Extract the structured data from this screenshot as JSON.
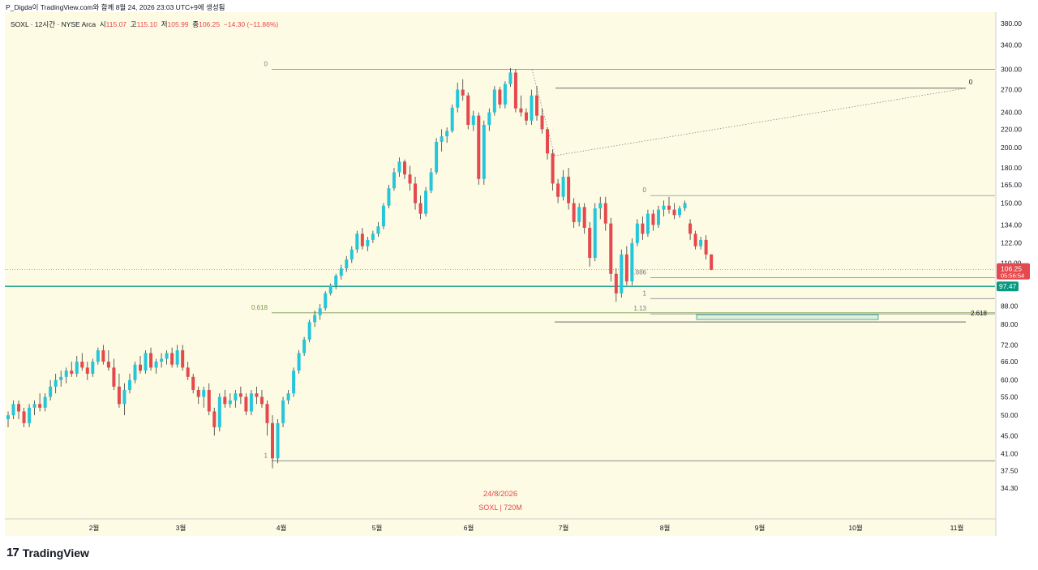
{
  "header": {
    "attribution": "P_Digda이 TradingView.com와 함께 8월 24, 2026 23:03 UTC+9에 생성됨"
  },
  "legend": {
    "symbol": "SOXL · 12시간 · NYSE Arca",
    "open_label": "시",
    "open": "115.07",
    "high_label": "고",
    "high": "115.10",
    "low_label": "저",
    "low": "105.99",
    "close_label": "종",
    "close": "106.25",
    "change": "−14.30 (−11.86%)"
  },
  "brand": {
    "logo_mark": "17",
    "name": "TradingView"
  },
  "watermark": {
    "date": "24/8/2026",
    "symbol": "SOXL | 720M"
  },
  "colors": {
    "up": "#26c6da",
    "down": "#e5484d",
    "background": "#fdfbe3",
    "support_line": "#089981",
    "price_badge": "#e5484d"
  },
  "chart_data": {
    "type": "candlestick",
    "y_scale": "log",
    "ylim": [
      31,
      390
    ],
    "price_ticks": [
      "380.00",
      "340.00",
      "300.00",
      "270.00",
      "240.00",
      "220.00",
      "200.00",
      "180.00",
      "165.00",
      "150.00",
      "134.00",
      "122.00",
      "110.00",
      "97.47",
      "88.00",
      "80.00",
      "72.00",
      "66.00",
      "60.00",
      "55.00",
      "50.00",
      "45.00",
      "41.00",
      "37.50",
      "34.30"
    ],
    "month_labels": [
      "2월",
      "3월",
      "4월",
      "5월",
      "6월",
      "7월",
      "8월",
      "9월",
      "10월",
      "11월"
    ],
    "last_price": "106.25",
    "countdown": "05:56:54",
    "support_price": "97.47",
    "fib_large": {
      "levels": [
        {
          "ratio": "0",
          "price": 300
        },
        {
          "ratio": "0.618",
          "price": 85
        },
        {
          "ratio": "1",
          "price": 39.5
        }
      ]
    },
    "fib_small": {
      "levels": [
        {
          "ratio": "0",
          "price": 156
        },
        {
          "ratio": "0.886",
          "price": 102
        },
        {
          "ratio": "1",
          "price": 91.5
        },
        {
          "ratio": "1.13",
          "price": 84.5
        }
      ]
    },
    "extension": {
      "ratio": "2.618",
      "price": 83.5,
      "zero_label": "0"
    },
    "projection_start_price": 200,
    "projection_end_price": 272,
    "candles": [
      [
        49,
        51,
        47,
        50
      ],
      [
        50,
        54,
        49,
        53
      ],
      [
        53,
        54,
        49,
        51
      ],
      [
        51,
        52,
        47,
        48
      ],
      [
        48,
        53,
        47,
        52
      ],
      [
        52,
        54,
        50,
        53
      ],
      [
        53,
        56,
        51,
        52
      ],
      [
        52,
        56,
        51,
        55
      ],
      [
        55,
        60,
        54,
        58
      ],
      [
        58,
        62,
        56,
        60
      ],
      [
        60,
        63,
        58,
        61
      ],
      [
        61,
        64,
        59,
        63
      ],
      [
        63,
        66,
        61,
        62
      ],
      [
        62,
        68,
        61,
        66
      ],
      [
        66,
        69,
        63,
        64
      ],
      [
        64,
        66,
        60,
        62
      ],
      [
        62,
        67,
        61,
        66
      ],
      [
        66,
        71,
        65,
        70
      ],
      [
        70,
        72,
        65,
        66
      ],
      [
        66,
        70,
        63,
        64
      ],
      [
        64,
        67,
        57,
        58
      ],
      [
        58,
        62,
        52,
        53
      ],
      [
        53,
        59,
        50,
        57
      ],
      [
        57,
        62,
        56,
        60
      ],
      [
        60,
        66,
        59,
        65
      ],
      [
        65,
        68,
        62,
        63
      ],
      [
        63,
        70,
        62,
        69
      ],
      [
        69,
        71,
        63,
        64
      ],
      [
        64,
        67,
        62,
        66
      ],
      [
        66,
        69,
        64,
        67
      ],
      [
        67,
        70,
        65,
        69
      ],
      [
        69,
        71,
        64,
        65
      ],
      [
        65,
        72,
        64,
        70
      ],
      [
        70,
        72,
        63,
        64
      ],
      [
        64,
        66,
        60,
        61
      ],
      [
        61,
        62,
        56,
        57
      ],
      [
        57,
        58,
        53,
        55
      ],
      [
        55,
        58,
        52,
        57
      ],
      [
        57,
        59,
        50,
        51
      ],
      [
        51,
        52,
        45,
        47
      ],
      [
        47,
        56,
        46,
        55
      ],
      [
        55,
        57,
        52,
        53
      ],
      [
        53,
        56,
        52,
        54
      ],
      [
        54,
        57,
        52,
        56
      ],
      [
        56,
        58,
        53,
        55
      ],
      [
        55,
        56,
        50,
        51
      ],
      [
        51,
        57,
        50,
        56
      ],
      [
        56,
        58,
        53,
        55
      ],
      [
        55,
        57,
        52,
        53
      ],
      [
        53,
        54,
        45,
        48
      ],
      [
        48,
        50,
        38,
        40
      ],
      [
        40,
        49,
        39,
        48
      ],
      [
        48,
        55,
        47,
        54
      ],
      [
        54,
        57,
        53,
        56
      ],
      [
        56,
        64,
        55,
        63
      ],
      [
        63,
        70,
        62,
        69
      ],
      [
        69,
        75,
        68,
        74
      ],
      [
        74,
        82,
        73,
        81
      ],
      [
        81,
        86,
        79,
        84
      ],
      [
        84,
        89,
        82,
        87
      ],
      [
        87,
        95,
        86,
        94
      ],
      [
        94,
        99,
        93,
        98
      ],
      [
        98,
        104,
        96,
        103
      ],
      [
        103,
        109,
        101,
        107
      ],
      [
        107,
        114,
        105,
        112
      ],
      [
        112,
        120,
        110,
        118
      ],
      [
        118,
        130,
        116,
        128
      ],
      [
        128,
        132,
        118,
        120
      ],
      [
        120,
        126,
        117,
        124
      ],
      [
        124,
        130,
        122,
        128
      ],
      [
        128,
        136,
        126,
        133
      ],
      [
        133,
        150,
        131,
        148
      ],
      [
        148,
        165,
        146,
        162
      ],
      [
        162,
        180,
        160,
        176
      ],
      [
        176,
        190,
        172,
        186
      ],
      [
        186,
        188,
        170,
        174
      ],
      [
        174,
        182,
        160,
        166
      ],
      [
        166,
        172,
        145,
        150
      ],
      [
        150,
        156,
        138,
        142
      ],
      [
        142,
        163,
        140,
        160
      ],
      [
        160,
        180,
        158,
        176
      ],
      [
        176,
        210,
        174,
        206
      ],
      [
        206,
        220,
        196,
        212
      ],
      [
        212,
        222,
        205,
        218
      ],
      [
        218,
        250,
        216,
        246
      ],
      [
        246,
        280,
        240,
        270
      ],
      [
        270,
        285,
        255,
        262
      ],
      [
        262,
        266,
        220,
        225
      ],
      [
        225,
        242,
        218,
        236
      ],
      [
        236,
        240,
        165,
        170
      ],
      [
        170,
        230,
        165,
        225
      ],
      [
        225,
        245,
        218,
        240
      ],
      [
        240,
        275,
        236,
        270
      ],
      [
        270,
        274,
        245,
        250
      ],
      [
        250,
        282,
        245,
        278
      ],
      [
        278,
        302,
        274,
        295
      ],
      [
        295,
        300,
        240,
        245
      ],
      [
        245,
        262,
        235,
        240
      ],
      [
        240,
        245,
        225,
        230
      ],
      [
        230,
        270,
        225,
        262
      ],
      [
        262,
        275,
        230,
        236
      ],
      [
        236,
        245,
        215,
        220
      ],
      [
        220,
        222,
        188,
        194
      ],
      [
        194,
        198,
        160,
        166
      ],
      [
        166,
        170,
        150,
        155
      ],
      [
        155,
        178,
        152,
        172
      ],
      [
        172,
        180,
        145,
        150
      ],
      [
        150,
        154,
        132,
        136
      ],
      [
        136,
        150,
        133,
        147
      ],
      [
        147,
        150,
        128,
        132
      ],
      [
        132,
        136,
        108,
        113
      ],
      [
        113,
        150,
        111,
        146
      ],
      [
        146,
        155,
        138,
        150
      ],
      [
        150,
        155,
        130,
        135
      ],
      [
        135,
        139,
        100,
        104
      ],
      [
        104,
        107,
        90,
        94
      ],
      [
        94,
        118,
        92,
        115
      ],
      [
        115,
        120,
        98,
        100
      ],
      [
        100,
        125,
        98,
        122
      ],
      [
        122,
        138,
        120,
        135
      ],
      [
        135,
        140,
        124,
        128
      ],
      [
        128,
        145,
        126,
        142
      ],
      [
        142,
        145,
        130,
        134
      ],
      [
        134,
        148,
        132,
        145
      ],
      [
        145,
        152,
        140,
        148
      ],
      [
        148,
        155,
        142,
        145
      ],
      [
        145,
        150,
        138,
        141
      ],
      [
        141,
        148,
        139,
        146
      ],
      [
        146,
        152,
        144,
        150
      ],
      [
        135,
        138,
        124,
        128
      ],
      [
        128,
        130,
        118,
        120
      ],
      [
        120,
        126,
        118,
        124
      ],
      [
        124,
        127,
        112,
        115
      ],
      [
        115,
        115.1,
        105.99,
        106.25
      ]
    ]
  }
}
